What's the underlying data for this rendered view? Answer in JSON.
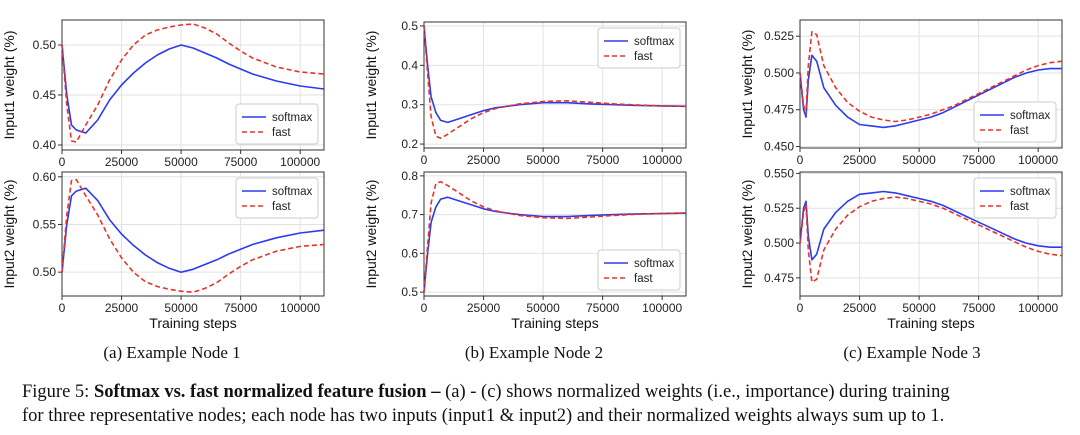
{
  "caption": {
    "prefix": "Figure 5: ",
    "bold": "Softmax vs. fast normalized feature fusion –",
    "line1_rest": " (a) - (c) shows normalized weights (i.e., importance) during training",
    "line2": "for three representative nodes; each node has two inputs (input1 & input2) and their normalized weights always sum up to 1."
  },
  "colors": {
    "softmax": "#2b3bf0",
    "fast": "#e8332a"
  },
  "chart_data": [
    {
      "type": "line",
      "panel": "a-top",
      "xlabel": "",
      "ylabel": "Input1 weight (%)",
      "xlim": [
        0,
        110000
      ],
      "ylim": [
        0.395,
        0.525
      ],
      "xticks": [
        0,
        25000,
        50000,
        75000,
        100000
      ],
      "xtick_labels": [
        "0",
        "25000",
        "50000",
        "75000",
        "100000"
      ],
      "yticks": [
        0.4,
        0.45,
        0.5
      ],
      "ytick_labels": [
        "0.40",
        "0.45",
        "0.50"
      ],
      "legend": "bottom-right",
      "series": [
        {
          "name": "softmax",
          "x": [
            0,
            2000,
            4000,
            6000,
            10000,
            15000,
            20000,
            25000,
            30000,
            35000,
            40000,
            45000,
            50000,
            55000,
            60000,
            65000,
            70000,
            75000,
            80000,
            90000,
            100000,
            110000
          ],
          "y": [
            0.5,
            0.45,
            0.42,
            0.415,
            0.412,
            0.425,
            0.445,
            0.46,
            0.472,
            0.482,
            0.49,
            0.496,
            0.5,
            0.497,
            0.492,
            0.487,
            0.481,
            0.476,
            0.471,
            0.464,
            0.459,
            0.456
          ]
        },
        {
          "name": "fast",
          "x": [
            0,
            2000,
            4000,
            6000,
            10000,
            15000,
            20000,
            25000,
            30000,
            35000,
            40000,
            45000,
            50000,
            55000,
            60000,
            65000,
            70000,
            75000,
            80000,
            90000,
            100000,
            110000
          ],
          "y": [
            0.5,
            0.44,
            0.404,
            0.403,
            0.42,
            0.44,
            0.465,
            0.485,
            0.5,
            0.51,
            0.515,
            0.518,
            0.52,
            0.521,
            0.517,
            0.511,
            0.502,
            0.494,
            0.487,
            0.478,
            0.473,
            0.471
          ]
        }
      ]
    },
    {
      "type": "line",
      "panel": "a-bottom",
      "xlabel": "Training steps",
      "ylabel": "Input2 weight (%)",
      "xlim": [
        0,
        110000
      ],
      "ylim": [
        0.475,
        0.605
      ],
      "xticks": [
        0,
        25000,
        50000,
        75000,
        100000
      ],
      "xtick_labels": [
        "0",
        "25000",
        "50000",
        "75000",
        "100000"
      ],
      "yticks": [
        0.5,
        0.55,
        0.6
      ],
      "ytick_labels": [
        "0.50",
        "0.55",
        "0.60"
      ],
      "legend": "top-right",
      "series": [
        {
          "name": "softmax",
          "x": [
            0,
            2000,
            4000,
            6000,
            10000,
            15000,
            20000,
            25000,
            30000,
            35000,
            40000,
            45000,
            50000,
            55000,
            60000,
            65000,
            70000,
            75000,
            80000,
            90000,
            100000,
            110000
          ],
          "y": [
            0.5,
            0.55,
            0.58,
            0.585,
            0.588,
            0.575,
            0.555,
            0.54,
            0.528,
            0.518,
            0.51,
            0.504,
            0.5,
            0.503,
            0.508,
            0.513,
            0.519,
            0.524,
            0.529,
            0.536,
            0.541,
            0.544
          ]
        },
        {
          "name": "fast",
          "x": [
            0,
            2000,
            4000,
            6000,
            10000,
            15000,
            20000,
            25000,
            30000,
            35000,
            40000,
            45000,
            50000,
            55000,
            60000,
            65000,
            70000,
            75000,
            80000,
            90000,
            100000,
            110000
          ],
          "y": [
            0.5,
            0.56,
            0.596,
            0.597,
            0.58,
            0.56,
            0.535,
            0.515,
            0.5,
            0.49,
            0.485,
            0.482,
            0.48,
            0.479,
            0.483,
            0.489,
            0.498,
            0.506,
            0.513,
            0.522,
            0.527,
            0.529
          ]
        }
      ]
    },
    {
      "type": "line",
      "panel": "b-top",
      "xlabel": "",
      "ylabel": "Input1 weight (%)",
      "xlim": [
        0,
        110000
      ],
      "ylim": [
        0.19,
        0.51
      ],
      "xticks": [
        0,
        25000,
        50000,
        75000,
        100000
      ],
      "xtick_labels": [
        "0",
        "25000",
        "50000",
        "75000",
        "100000"
      ],
      "yticks": [
        0.2,
        0.3,
        0.4,
        0.5
      ],
      "ytick_labels": [
        "0.2",
        "0.3",
        "0.4",
        "0.5"
      ],
      "legend": "top-right",
      "series": [
        {
          "name": "softmax",
          "x": [
            0,
            1500,
            3000,
            5000,
            7000,
            10000,
            15000,
            20000,
            25000,
            30000,
            40000,
            50000,
            60000,
            70000,
            80000,
            90000,
            100000,
            110000
          ],
          "y": [
            0.5,
            0.4,
            0.32,
            0.28,
            0.26,
            0.255,
            0.265,
            0.275,
            0.285,
            0.292,
            0.3,
            0.305,
            0.305,
            0.302,
            0.3,
            0.298,
            0.297,
            0.296
          ]
        },
        {
          "name": "fast",
          "x": [
            0,
            1500,
            3000,
            5000,
            7000,
            10000,
            15000,
            20000,
            25000,
            30000,
            40000,
            50000,
            60000,
            70000,
            80000,
            90000,
            100000,
            110000
          ],
          "y": [
            0.5,
            0.38,
            0.27,
            0.22,
            0.215,
            0.225,
            0.245,
            0.265,
            0.28,
            0.29,
            0.302,
            0.308,
            0.31,
            0.306,
            0.302,
            0.299,
            0.297,
            0.296
          ]
        }
      ]
    },
    {
      "type": "line",
      "panel": "b-bottom",
      "xlabel": "Training steps",
      "ylabel": "Input2 weight (%)",
      "xlim": [
        0,
        110000
      ],
      "ylim": [
        0.49,
        0.81
      ],
      "xticks": [
        0,
        25000,
        50000,
        75000,
        100000
      ],
      "xtick_labels": [
        "0",
        "25000",
        "50000",
        "75000",
        "100000"
      ],
      "yticks": [
        0.5,
        0.6,
        0.7,
        0.8
      ],
      "ytick_labels": [
        "0.5",
        "0.6",
        "0.7",
        "0.8"
      ],
      "legend": "bottom-right",
      "series": [
        {
          "name": "softmax",
          "x": [
            0,
            1500,
            3000,
            5000,
            7000,
            10000,
            15000,
            20000,
            25000,
            30000,
            40000,
            50000,
            60000,
            70000,
            80000,
            90000,
            100000,
            110000
          ],
          "y": [
            0.5,
            0.6,
            0.68,
            0.72,
            0.74,
            0.745,
            0.735,
            0.725,
            0.715,
            0.708,
            0.7,
            0.695,
            0.695,
            0.698,
            0.7,
            0.702,
            0.703,
            0.704
          ]
        },
        {
          "name": "fast",
          "x": [
            0,
            1500,
            3000,
            5000,
            7000,
            10000,
            15000,
            20000,
            25000,
            30000,
            40000,
            50000,
            60000,
            70000,
            80000,
            90000,
            100000,
            110000
          ],
          "y": [
            0.5,
            0.62,
            0.73,
            0.78,
            0.785,
            0.775,
            0.755,
            0.735,
            0.72,
            0.71,
            0.698,
            0.692,
            0.69,
            0.694,
            0.698,
            0.701,
            0.703,
            0.704
          ]
        }
      ]
    },
    {
      "type": "line",
      "panel": "c-top",
      "xlabel": "",
      "ylabel": "Input1 weight (%)",
      "xlim": [
        0,
        110000
      ],
      "ylim": [
        0.449,
        0.536
      ],
      "xticks": [
        0,
        25000,
        50000,
        75000,
        100000
      ],
      "xtick_labels": [
        "0",
        "25000",
        "50000",
        "75000",
        "100000"
      ],
      "yticks": [
        0.45,
        0.475,
        0.5,
        0.525
      ],
      "ytick_labels": [
        "0.450",
        "0.475",
        "0.500",
        "0.525"
      ],
      "legend": "bottom-right",
      "series": [
        {
          "name": "softmax",
          "x": [
            0,
            1500,
            2500,
            3500,
            5000,
            7000,
            10000,
            15000,
            20000,
            25000,
            30000,
            35000,
            40000,
            45000,
            50000,
            55000,
            60000,
            65000,
            70000,
            75000,
            80000,
            85000,
            90000,
            95000,
            100000,
            105000,
            110000
          ],
          "y": [
            0.5,
            0.475,
            0.47,
            0.495,
            0.512,
            0.508,
            0.49,
            0.478,
            0.47,
            0.465,
            0.464,
            0.463,
            0.464,
            0.466,
            0.468,
            0.47,
            0.473,
            0.477,
            0.481,
            0.485,
            0.489,
            0.493,
            0.497,
            0.5,
            0.502,
            0.503,
            0.503
          ]
        },
        {
          "name": "fast",
          "x": [
            0,
            1500,
            2500,
            3500,
            5000,
            7000,
            10000,
            15000,
            20000,
            25000,
            30000,
            35000,
            40000,
            45000,
            50000,
            55000,
            60000,
            65000,
            70000,
            75000,
            80000,
            85000,
            90000,
            95000,
            100000,
            105000,
            110000
          ],
          "y": [
            0.5,
            0.478,
            0.472,
            0.505,
            0.528,
            0.526,
            0.505,
            0.49,
            0.48,
            0.474,
            0.47,
            0.468,
            0.467,
            0.468,
            0.47,
            0.472,
            0.475,
            0.478,
            0.482,
            0.486,
            0.49,
            0.494,
            0.498,
            0.502,
            0.505,
            0.507,
            0.508
          ]
        }
      ]
    },
    {
      "type": "line",
      "panel": "c-bottom",
      "xlabel": "Training steps",
      "ylabel": "Input2 weight (%)",
      "xlim": [
        0,
        110000
      ],
      "ylim": [
        0.462,
        0.551
      ],
      "xticks": [
        0,
        25000,
        50000,
        75000,
        100000
      ],
      "xtick_labels": [
        "0",
        "25000",
        "50000",
        "75000",
        "100000"
      ],
      "yticks": [
        0.475,
        0.5,
        0.525,
        0.55
      ],
      "ytick_labels": [
        "0.475",
        "0.500",
        "0.525",
        "0.550"
      ],
      "legend": "top-right",
      "series": [
        {
          "name": "softmax",
          "x": [
            0,
            1500,
            2500,
            3500,
            5000,
            7000,
            10000,
            15000,
            20000,
            25000,
            30000,
            35000,
            40000,
            45000,
            50000,
            55000,
            60000,
            65000,
            70000,
            75000,
            80000,
            85000,
            90000,
            95000,
            100000,
            105000,
            110000
          ],
          "y": [
            0.5,
            0.525,
            0.53,
            0.505,
            0.488,
            0.492,
            0.51,
            0.522,
            0.53,
            0.535,
            0.536,
            0.537,
            0.536,
            0.534,
            0.532,
            0.53,
            0.527,
            0.523,
            0.519,
            0.515,
            0.511,
            0.507,
            0.503,
            0.5,
            0.498,
            0.497,
            0.497
          ]
        },
        {
          "name": "fast",
          "x": [
            0,
            1500,
            2500,
            3500,
            5000,
            7000,
            10000,
            15000,
            20000,
            25000,
            30000,
            35000,
            40000,
            45000,
            50000,
            55000,
            60000,
            65000,
            70000,
            75000,
            80000,
            85000,
            90000,
            95000,
            100000,
            105000,
            110000
          ],
          "y": [
            0.5,
            0.522,
            0.528,
            0.495,
            0.472,
            0.474,
            0.495,
            0.51,
            0.52,
            0.526,
            0.53,
            0.532,
            0.533,
            0.532,
            0.53,
            0.528,
            0.525,
            0.521,
            0.517,
            0.513,
            0.509,
            0.505,
            0.501,
            0.497,
            0.494,
            0.492,
            0.491
          ]
        }
      ]
    }
  ],
  "subcaptions": [
    "(a) Example Node 1",
    "(b) Example Node 2",
    "(c) Example Node 3"
  ]
}
